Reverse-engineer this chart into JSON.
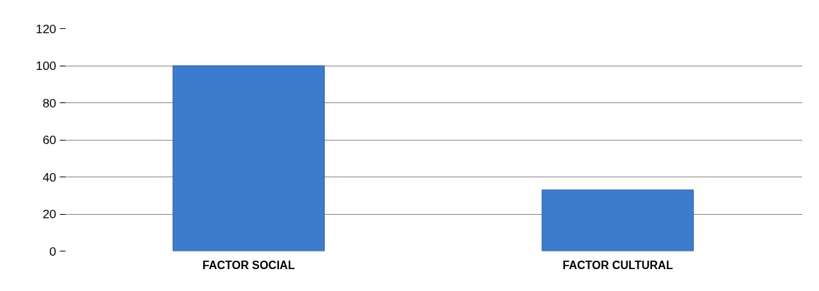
{
  "chart_data": {
    "type": "bar",
    "categories": [
      "FACTOR SOCIAL",
      "FACTOR CULTURAL"
    ],
    "values": [
      100,
      33
    ],
    "color": "#3d7ccc",
    "ylim": [
      0,
      120
    ],
    "yticks": [
      0,
      20,
      40,
      60,
      80,
      100,
      120
    ],
    "grid": "y"
  }
}
